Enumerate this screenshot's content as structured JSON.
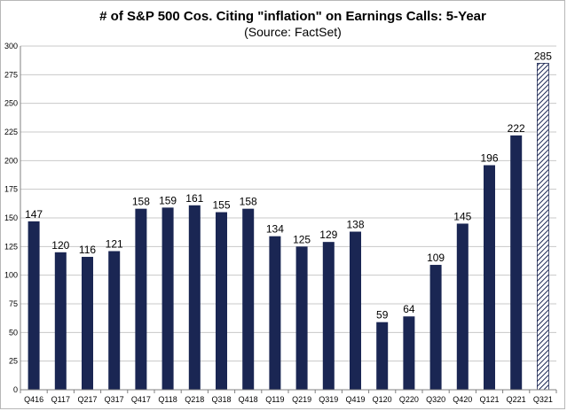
{
  "chart_data": {
    "type": "bar",
    "title": "# of S&P 500 Cos. Citing \"inflation\" on Earnings Calls: 5-Year",
    "subtitle": "(Source: FactSet)",
    "xlabel": "",
    "ylabel": "",
    "categories": [
      "Q416",
      "Q117",
      "Q217",
      "Q317",
      "Q417",
      "Q118",
      "Q218",
      "Q318",
      "Q418",
      "Q119",
      "Q219",
      "Q319",
      "Q419",
      "Q120",
      "Q220",
      "Q320",
      "Q420",
      "Q121",
      "Q221",
      "Q321"
    ],
    "values": [
      147,
      120,
      116,
      121,
      158,
      159,
      161,
      155,
      158,
      134,
      125,
      129,
      138,
      59,
      64,
      109,
      145,
      196,
      222,
      285
    ],
    "ylim": [
      0,
      300
    ],
    "yticks": [
      0,
      25,
      50,
      75,
      100,
      125,
      150,
      175,
      200,
      225,
      250,
      275,
      300
    ],
    "grid": "horizontal",
    "bar_color": "#1a2653",
    "last_bar_style": "hatched",
    "legend": "none"
  }
}
